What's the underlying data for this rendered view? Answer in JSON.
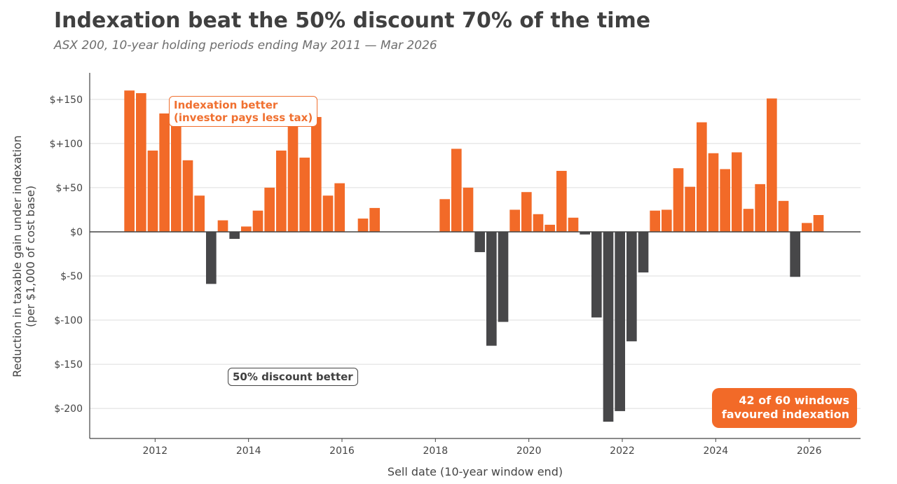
{
  "header": {
    "title": "Indexation beat the 50% discount 70% of the time",
    "subtitle": "ASX 200, 10-year holding periods ending May 2011 — Mar 2026"
  },
  "annotations": {
    "indexation_better": "Indexation better\n(investor pays less tax)",
    "discount_better": "50% discount better",
    "summary": "42 of 60 windows\nfavoured indexation"
  },
  "colors": {
    "positive": "#f26a28",
    "negative": "#474749",
    "grid": "#dddddd",
    "axis": "#444444"
  },
  "chart_data": {
    "type": "bar",
    "title": "Indexation beat the 50% discount 70% of the time",
    "subtitle": "ASX 200, 10-year holding periods ending May 2011 — Mar 2026",
    "xlabel": "Sell date (10-year window end)",
    "ylabel": "Reduction in taxable gain under indexation\n(per $1,000 of cost base)",
    "xlim": [
      2010.6,
      2027.1
    ],
    "ylim": [
      -234,
      180
    ],
    "yticks": [
      150,
      100,
      50,
      0,
      -50,
      -100,
      -150,
      -200
    ],
    "ytick_labels": [
      "$+150",
      "$+100",
      "$+50",
      "$0",
      "$-50",
      "$-100",
      "$-150",
      "$-200"
    ],
    "xticks": [
      2012,
      2014,
      2016,
      2018,
      2020,
      2022,
      2024,
      2026
    ],
    "xtick_labels": [
      "2012",
      "2014",
      "2016",
      "2018",
      "2020",
      "2022",
      "2024",
      "2026"
    ],
    "bar_width_years": 0.22,
    "grid": "horizontal",
    "series": [
      {
        "values": [
          {
            "x": 2011.45,
            "y": 160
          },
          {
            "x": 2011.7,
            "y": 157
          },
          {
            "x": 2011.95,
            "y": 92
          },
          {
            "x": 2012.2,
            "y": 134
          },
          {
            "x": 2012.45,
            "y": 125
          },
          {
            "x": 2012.7,
            "y": 81
          },
          {
            "x": 2012.95,
            "y": 41
          },
          {
            "x": 2013.2,
            "y": -59
          },
          {
            "x": 2013.45,
            "y": 13
          },
          {
            "x": 2013.7,
            "y": -8
          },
          {
            "x": 2013.95,
            "y": 6
          },
          {
            "x": 2014.2,
            "y": 24
          },
          {
            "x": 2014.45,
            "y": 50
          },
          {
            "x": 2014.7,
            "y": 92
          },
          {
            "x": 2014.95,
            "y": 125
          },
          {
            "x": 2015.2,
            "y": 84
          },
          {
            "x": 2015.45,
            "y": 130
          },
          {
            "x": 2015.7,
            "y": 41
          },
          {
            "x": 2015.95,
            "y": 55
          },
          {
            "x": 2016.45,
            "y": 15
          },
          {
            "x": 2016.7,
            "y": 27
          },
          {
            "x": 2018.2,
            "y": 37
          },
          {
            "x": 2018.45,
            "y": 94
          },
          {
            "x": 2018.7,
            "y": 50
          },
          {
            "x": 2018.95,
            "y": -23
          },
          {
            "x": 2019.2,
            "y": -129
          },
          {
            "x": 2019.45,
            "y": -102
          },
          {
            "x": 2019.7,
            "y": 25
          },
          {
            "x": 2019.95,
            "y": 45
          },
          {
            "x": 2020.2,
            "y": 20
          },
          {
            "x": 2020.45,
            "y": 8
          },
          {
            "x": 2020.7,
            "y": 69
          },
          {
            "x": 2020.95,
            "y": 16
          },
          {
            "x": 2021.2,
            "y": -3
          },
          {
            "x": 2021.45,
            "y": -97
          },
          {
            "x": 2021.7,
            "y": -215
          },
          {
            "x": 2021.95,
            "y": -203
          },
          {
            "x": 2022.2,
            "y": -124
          },
          {
            "x": 2022.45,
            "y": -46
          },
          {
            "x": 2022.7,
            "y": 24
          },
          {
            "x": 2022.95,
            "y": 25
          },
          {
            "x": 2023.2,
            "y": 72
          },
          {
            "x": 2023.45,
            "y": 51
          },
          {
            "x": 2023.7,
            "y": 124
          },
          {
            "x": 2023.95,
            "y": 89
          },
          {
            "x": 2024.2,
            "y": 71
          },
          {
            "x": 2024.45,
            "y": 90
          },
          {
            "x": 2024.7,
            "y": 26
          },
          {
            "x": 2024.95,
            "y": 54
          },
          {
            "x": 2025.2,
            "y": 151
          },
          {
            "x": 2025.45,
            "y": 35
          },
          {
            "x": 2025.7,
            "y": -51
          },
          {
            "x": 2025.95,
            "y": 10
          },
          {
            "x": 2026.2,
            "y": 19
          }
        ]
      }
    ]
  }
}
